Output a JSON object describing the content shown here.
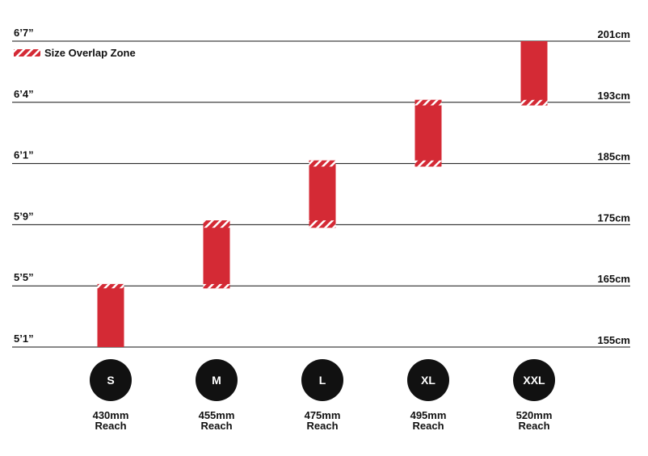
{
  "chart_data": {
    "type": "range-bar",
    "categories": [
      "S",
      "M",
      "L",
      "XL",
      "XXL"
    ],
    "reach": [
      "430mm",
      "455mm",
      "475mm",
      "495mm",
      "520mm"
    ],
    "reach_caption": "Reach",
    "low": [
      0,
      0.96,
      1.95,
      2.95,
      3.95
    ],
    "high": [
      1.03,
      2.07,
      3.05,
      4.04,
      5
    ],
    "color": "#d42a35",
    "legend": {
      "label": "Size Overlap Zone",
      "position": "upper left"
    },
    "ylim": [
      0,
      5
    ],
    "yticks": [
      {
        "value": 0,
        "label": "5’1”"
      },
      {
        "value": 1,
        "label": "5’5”"
      },
      {
        "value": 2,
        "label": "5’9”"
      },
      {
        "value": 3,
        "label": "6’1”"
      },
      {
        "value": 4,
        "label": "6’4”"
      },
      {
        "value": 5,
        "label": "6’7”"
      }
    ],
    "y2lim": [
      0,
      5
    ],
    "y2ticks": [
      {
        "value": 0,
        "label": "155cm"
      },
      {
        "value": 1,
        "label": "165cm"
      },
      {
        "value": 2,
        "label": "175cm"
      },
      {
        "value": 3,
        "label": "185cm"
      },
      {
        "value": 4,
        "label": "193cm"
      },
      {
        "value": 5,
        "label": "201cm"
      }
    ],
    "grid": true
  }
}
